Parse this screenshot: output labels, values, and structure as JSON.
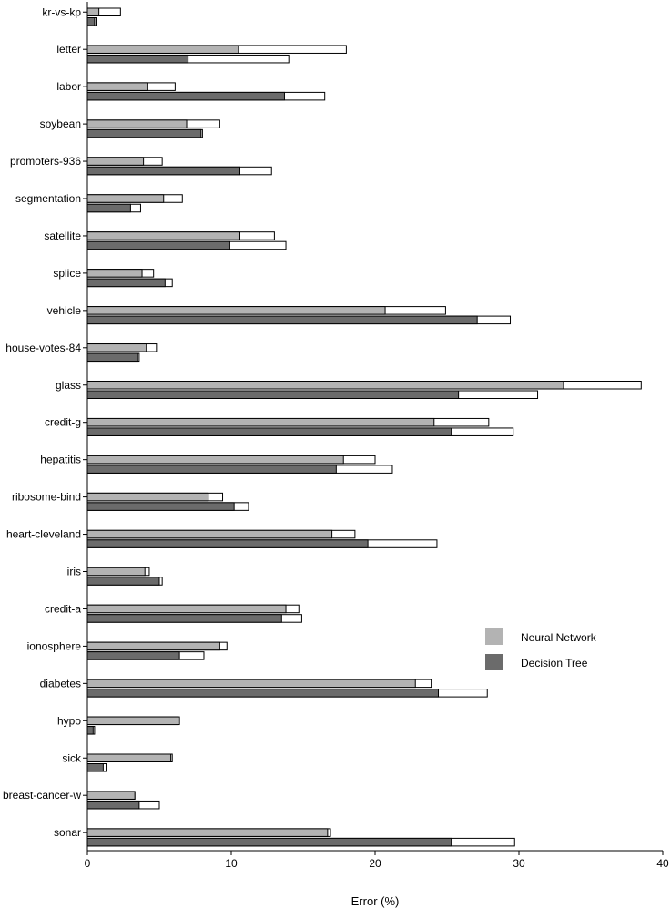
{
  "chart_data": {
    "type": "bar",
    "orientation": "horizontal",
    "title": "",
    "xlabel": "Error (%)",
    "ylabel": "",
    "xlim": [
      0,
      40
    ],
    "xticks": [
      0,
      10,
      20,
      30,
      40
    ],
    "grid": false,
    "legend_position": "right",
    "categories": [
      "kr-vs-kp",
      "letter",
      "labor",
      "soybean",
      "promoters-936",
      "segmentation",
      "satellite",
      "splice",
      "vehicle",
      "house-votes-84",
      "glass",
      "credit-g",
      "hepatitis",
      "ribosome-bind",
      "heart-cleveland",
      "iris",
      "credit-a",
      "ionosphere",
      "diabetes",
      "hypo",
      "sick",
      "breast-cancer-w",
      "sonar"
    ],
    "series": [
      {
        "name": "Neural Network",
        "color": "#b3b3b3",
        "values": [
          0.8,
          10.5,
          4.2,
          6.9,
          3.9,
          5.3,
          10.6,
          3.8,
          20.7,
          4.1,
          33.1,
          24.1,
          17.8,
          8.4,
          17.0,
          4.0,
          13.8,
          9.2,
          22.8,
          6.3,
          5.8,
          3.3,
          16.7
        ],
        "upper_values": [
          2.3,
          18.0,
          6.1,
          9.2,
          5.2,
          6.6,
          13.0,
          4.6,
          24.9,
          4.8,
          38.5,
          27.9,
          20.0,
          9.4,
          18.6,
          4.3,
          14.7,
          9.7,
          23.9,
          6.4,
          5.9,
          3.3,
          16.9
        ]
      },
      {
        "name": "Decision Tree",
        "color": "#6b6b6b",
        "values": [
          0.5,
          7.0,
          13.7,
          7.9,
          10.6,
          3.0,
          9.9,
          5.4,
          27.1,
          3.5,
          25.8,
          25.3,
          17.3,
          10.2,
          19.5,
          5.0,
          13.5,
          6.4,
          24.4,
          0.4,
          1.1,
          3.6,
          25.3
        ],
        "upper_values": [
          0.6,
          14.0,
          16.5,
          8.0,
          12.8,
          3.7,
          13.8,
          5.9,
          29.4,
          3.6,
          31.3,
          29.6,
          21.2,
          11.2,
          24.3,
          5.2,
          14.9,
          8.1,
          27.8,
          0.5,
          1.3,
          5.0,
          29.7
        ]
      }
    ]
  }
}
